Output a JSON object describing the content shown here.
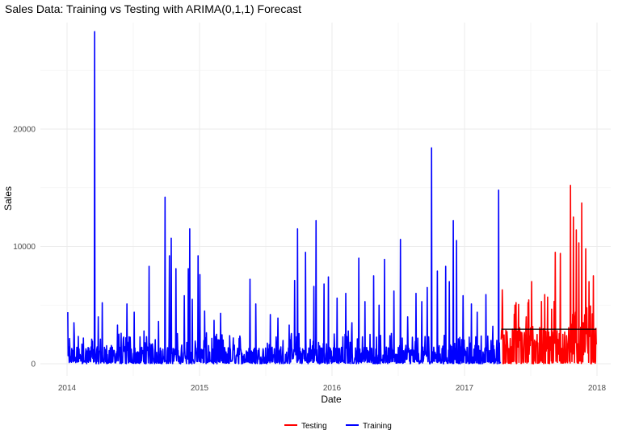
{
  "chart_data": {
    "type": "line",
    "title": "Sales Data: Training vs Testing with ARIMA(0,1,1) Forecast",
    "xlabel": "Date",
    "ylabel": "Sales",
    "x_range": [
      "2014-01-01",
      "2018-01-01"
    ],
    "ylim": [
      -700,
      28500
    ],
    "x_ticks": [
      {
        "date": "2014-01-01",
        "label": "2014"
      },
      {
        "date": "2015-01-01",
        "label": "2015"
      },
      {
        "date": "2016-01-01",
        "label": "2016"
      },
      {
        "date": "2017-01-01",
        "label": "2017"
      },
      {
        "date": "2018-01-01",
        "label": "2018"
      }
    ],
    "y_ticks": [
      0,
      10000,
      20000
    ],
    "y_tick_labels": [
      "0",
      "10000",
      "20000"
    ],
    "grid": true,
    "legend_position": "bottom",
    "series": [
      {
        "name": "Training",
        "color": "#0000ff",
        "x_start": "2014-01-03",
        "x_end": "2017-04-10",
        "baseline": 1200,
        "peaks": [
          [
            "2014-01-03",
            4400
          ],
          [
            "2014-01-20",
            3500
          ],
          [
            "2014-02-15",
            2200
          ],
          [
            "2014-03-10",
            2100
          ],
          [
            "2014-03-18",
            28300
          ],
          [
            "2014-03-28",
            4000
          ],
          [
            "2014-04-08",
            5200
          ],
          [
            "2014-05-20",
            3300
          ],
          [
            "2014-06-15",
            5100
          ],
          [
            "2014-07-05",
            4400
          ],
          [
            "2014-08-01",
            2800
          ],
          [
            "2014-08-15",
            8300
          ],
          [
            "2014-09-10",
            3600
          ],
          [
            "2014-09-28",
            14200
          ],
          [
            "2014-10-10",
            9200
          ],
          [
            "2014-10-15",
            10700
          ],
          [
            "2014-10-28",
            8100
          ],
          [
            "2014-11-20",
            5800
          ],
          [
            "2014-12-01",
            8100
          ],
          [
            "2014-12-05",
            11500
          ],
          [
            "2014-12-12",
            5500
          ],
          [
            "2014-12-28",
            9200
          ],
          [
            "2015-01-02",
            7600
          ],
          [
            "2015-01-15",
            4500
          ],
          [
            "2015-02-10",
            3700
          ],
          [
            "2015-02-28",
            4300
          ],
          [
            "2015-03-25",
            2400
          ],
          [
            "2015-05-20",
            7200
          ],
          [
            "2015-06-05",
            5100
          ],
          [
            "2015-07-15",
            4200
          ],
          [
            "2015-08-05",
            3900
          ],
          [
            "2015-09-05",
            3300
          ],
          [
            "2015-09-20",
            7100
          ],
          [
            "2015-09-28",
            11500
          ],
          [
            "2015-10-20",
            9500
          ],
          [
            "2015-11-12",
            6600
          ],
          [
            "2015-11-18",
            12200
          ],
          [
            "2015-12-10",
            6800
          ],
          [
            "2015-12-22",
            7400
          ],
          [
            "2016-01-15",
            5600
          ],
          [
            "2016-02-08",
            6000
          ],
          [
            "2016-02-15",
            2800
          ],
          [
            "2016-02-25",
            3500
          ],
          [
            "2016-03-15",
            9000
          ],
          [
            "2016-04-01",
            5300
          ],
          [
            "2016-04-25",
            7500
          ],
          [
            "2016-05-10",
            5000
          ],
          [
            "2016-05-25",
            8900
          ],
          [
            "2016-06-20",
            6200
          ],
          [
            "2016-07-08",
            10600
          ],
          [
            "2016-07-28",
            4000
          ],
          [
            "2016-08-20",
            6000
          ],
          [
            "2016-09-05",
            5300
          ],
          [
            "2016-09-20",
            6500
          ],
          [
            "2016-10-02",
            18400
          ],
          [
            "2016-10-18",
            7900
          ],
          [
            "2016-11-10",
            8300
          ],
          [
            "2016-11-20",
            7000
          ],
          [
            "2016-12-01",
            12200
          ],
          [
            "2016-12-10",
            10500
          ],
          [
            "2016-12-28",
            5800
          ],
          [
            "2017-01-20",
            5100
          ],
          [
            "2017-02-05",
            4400
          ],
          [
            "2017-03-01",
            5900
          ],
          [
            "2017-03-20",
            3200
          ],
          [
            "2017-04-05",
            14800
          ]
        ]
      },
      {
        "name": "Testing",
        "color": "#ff0000",
        "x_start": "2017-04-12",
        "x_end": "2017-12-30",
        "baseline": 2600,
        "peaks": [
          [
            "2017-04-15",
            6300
          ],
          [
            "2017-05-20",
            5000
          ],
          [
            "2017-06-20",
            4000
          ],
          [
            "2017-07-05",
            7000
          ],
          [
            "2017-08-10",
            5900
          ],
          [
            "2017-09-08",
            9500
          ],
          [
            "2017-09-22",
            9400
          ],
          [
            "2017-10-20",
            15200
          ],
          [
            "2017-10-28",
            12500
          ],
          [
            "2017-11-05",
            11400
          ],
          [
            "2017-11-12",
            10300
          ],
          [
            "2017-11-20",
            13700
          ],
          [
            "2017-12-01",
            9800
          ],
          [
            "2017-12-10",
            7000
          ],
          [
            "2017-12-22",
            7500
          ]
        ]
      },
      {
        "color": "#000000",
        "x_start": "2017-04-12",
        "x_end": "2017-12-30",
        "values": [
          2950,
          2950
        ]
      }
    ]
  }
}
